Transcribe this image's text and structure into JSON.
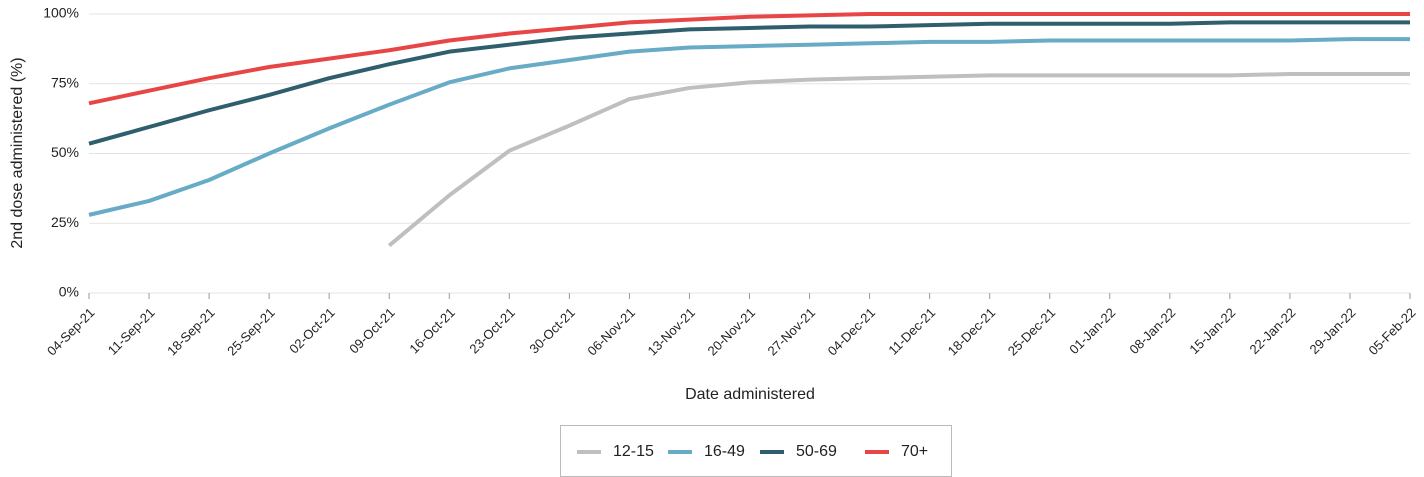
{
  "chart_data": {
    "type": "line",
    "y_label": "2nd dose administered (%)",
    "x_label": "Date administered",
    "categories": [
      "04-Sep-21",
      "11-Sep-21",
      "18-Sep-21",
      "25-Sep-21",
      "02-Oct-21",
      "09-Oct-21",
      "16-Oct-21",
      "23-Oct-21",
      "30-Oct-21",
      "06-Nov-21",
      "13-Nov-21",
      "20-Nov-21",
      "27-Nov-21",
      "04-Dec-21",
      "11-Dec-21",
      "18-Dec-21",
      "25-Dec-21",
      "01-Jan-22",
      "08-Jan-22",
      "15-Jan-22",
      "22-Jan-22",
      "29-Jan-22",
      "05-Feb-22"
    ],
    "series": [
      {
        "name": "12-15",
        "color": "#bfbfbf",
        "values": [
          null,
          null,
          null,
          null,
          null,
          17,
          35,
          51,
          60,
          69.5,
          73.5,
          75.5,
          76.5,
          77,
          77.5,
          78,
          78,
          78,
          78,
          78,
          78.5,
          78.5,
          78.5
        ]
      },
      {
        "name": "16-49",
        "color": "#67abc6",
        "values": [
          28,
          33,
          40.5,
          50,
          59,
          67.5,
          75.5,
          80.5,
          83.5,
          86.5,
          88,
          88.5,
          89,
          89.5,
          90,
          90,
          90.5,
          90.5,
          90.5,
          90.5,
          90.5,
          91,
          91
        ]
      },
      {
        "name": "50-69",
        "color": "#2f5f6c",
        "values": [
          53.5,
          59.5,
          65.5,
          71,
          77,
          82,
          86.5,
          89,
          91.5,
          93,
          94.5,
          95,
          95.5,
          95.5,
          96,
          96.5,
          96.5,
          96.5,
          96.5,
          97,
          97,
          97,
          97
        ]
      },
      {
        "name": "70+",
        "color": "#e84646",
        "values": [
          68,
          72.5,
          77,
          81,
          84,
          87,
          90.5,
          93,
          95,
          97,
          98,
          99,
          99.5,
          100,
          100,
          100,
          100,
          100,
          100,
          100,
          100,
          100,
          100
        ]
      }
    ],
    "ylim": [
      0,
      100
    ],
    "yticks": [
      {
        "value": 0,
        "label": "0%"
      },
      {
        "value": 25,
        "label": "25%"
      },
      {
        "value": 50,
        "label": "50%"
      },
      {
        "value": 75,
        "label": "75%"
      },
      {
        "value": 100,
        "label": "100%"
      }
    ],
    "grid": true,
    "legend": "bottom"
  }
}
